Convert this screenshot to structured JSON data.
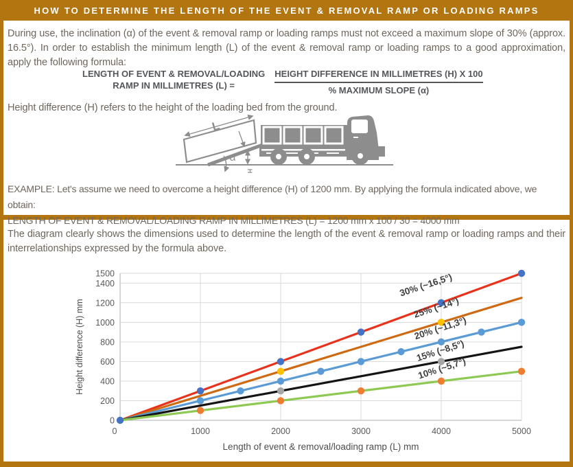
{
  "page": {
    "accent_color": "#b2750f",
    "title": "HOW TO DETERMINE THE LENGTH OF THE EVENT & REMOVAL RAMP OR LOADING RAMPS"
  },
  "intro": {
    "text": "During use, the inclination (α) of the event & removal ramp or loading ramps must not exceed a maximum slope of 30% (approx. 16.5°). In order to establish the minimum length (L) of the event & removal ramp or loading ramps to a good approximation, apply the following formula:"
  },
  "formula": {
    "lhs_line1": "LENGTH OF EVENT & REMOVAL/LOADING",
    "lhs_line2": "RAMP IN MILLIMETRES (L) =",
    "numerator": "HEIGHT DIFFERENCE IN MILLIMETRES (H) X 100",
    "denominator": "% MAXIMUM SLOPE (α)"
  },
  "height_note": "Height difference (H) refers to the height of the loading bed from the ground.",
  "illustration": {
    "color": "#8d8d8d",
    "labels": {
      "length": "L",
      "angle": "α",
      "height": "H"
    }
  },
  "example": {
    "line1": "EXAMPLE: Let's assume we need to overcome a height difference (H) of 1200 mm. By applying the formula indicated above, we obtain:",
    "line2": "LENGTH OF EVENT & REMOVAL/LOADING RAMP IN MILLIMETRES (L) = 1200 mm x 100 / 30 = 4000 mm"
  },
  "diagram_note": "The diagram clearly shows the dimensions used to determine the length of the event & removal ramp or loading ramps and their interrelationships expressed by the formula above.",
  "chart_data": {
    "type": "line",
    "title": "",
    "xlabel": "Length of event & removal/loading ramp (L) mm",
    "ylabel": "Height difference (H) mm",
    "xlim": [
      0,
      5000
    ],
    "ylim": [
      0,
      1500
    ],
    "x_ticks": [
      0,
      1000,
      2000,
      3000,
      4000,
      5000
    ],
    "y_ticks": [
      0,
      200,
      400,
      600,
      800,
      1000,
      1200,
      1400,
      1500
    ],
    "grid": true,
    "legend_position": "inline rotated labels above each line",
    "label_rotation_deg": -18,
    "label_color": "#3f3f3f",
    "axis_color": "#bfbfbf",
    "grid_color": "#d9d9d9",
    "tick_color": "#595959",
    "series": [
      {
        "name": "30% (~16,5°)",
        "slope_percent": 30,
        "x": [
          0,
          1000,
          2000,
          3000,
          4000,
          5000
        ],
        "y": [
          0,
          300,
          600,
          900,
          1200,
          1500
        ],
        "marker_x": [
          0,
          1000,
          2000,
          3000,
          4000,
          5000
        ],
        "line_color": "#e8321c",
        "marker_color": "#4472c4",
        "label_anchor": [
          3820,
          1350
        ]
      },
      {
        "name": "25% (~14°)",
        "slope_percent": 25,
        "x": [
          0,
          5000
        ],
        "y": [
          0,
          1250
        ],
        "marker_x": [
          2000,
          4000
        ],
        "line_color": "#cd6a12",
        "marker_color": "#ffc000",
        "label_anchor": [
          3950,
          1120
        ]
      },
      {
        "name": "20% (~11,3°)",
        "slope_percent": 20,
        "x": [
          0,
          5000
        ],
        "y": [
          0,
          1000
        ],
        "marker_x": [
          1000,
          1500,
          2000,
          2500,
          3000,
          3500,
          4000,
          4500,
          5000
        ],
        "line_color": "#5b9bd5",
        "marker_color": "#5b9bd5",
        "label_anchor": [
          4000,
          910
        ]
      },
      {
        "name": "15% (~8,5°)",
        "slope_percent": 15,
        "x": [
          0,
          5000
        ],
        "y": [
          0,
          750
        ],
        "marker_x": [
          2000,
          4000
        ],
        "line_color": "#141414",
        "marker_color": "#a6a6a6",
        "label_anchor": [
          4000,
          680
        ]
      },
      {
        "name": "10% (~5,7°)",
        "slope_percent": 10,
        "x": [
          0,
          5000
        ],
        "y": [
          0,
          500
        ],
        "marker_x": [
          1000,
          2000,
          3000,
          4000,
          5000
        ],
        "line_color": "#8ec954",
        "marker_color": "#ee7d31",
        "label_anchor": [
          4020,
          500
        ]
      }
    ]
  }
}
